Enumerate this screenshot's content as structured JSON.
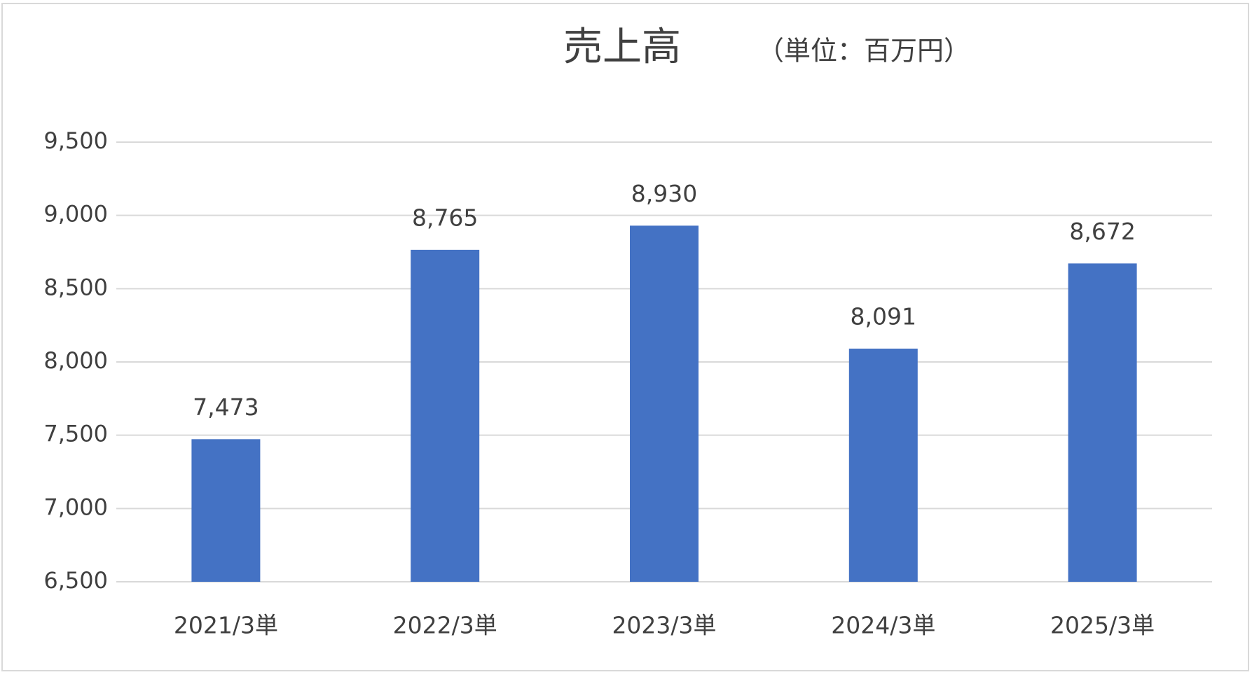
{
  "chart_data": {
    "type": "bar",
    "title": "売上高",
    "subtitle": "（単位：百万円）",
    "categories": [
      "2021/3単",
      "2022/3単",
      "2023/3単",
      "2024/3単",
      "2025/3単"
    ],
    "values": [
      7473,
      8765,
      8930,
      8091,
      8672
    ],
    "value_labels": [
      "7,473",
      "8,765",
      "8,930",
      "8,091",
      "8,672"
    ],
    "color": "#4472c4",
    "ylim": [
      6500,
      9500
    ],
    "yticks": [
      {
        "value": 6500,
        "label": "6,500"
      },
      {
        "value": 7000,
        "label": "7,000"
      },
      {
        "value": 7500,
        "label": "7,500"
      },
      {
        "value": 8000,
        "label": "8,000"
      },
      {
        "value": 8500,
        "label": "8,500"
      },
      {
        "value": 9000,
        "label": "9,000"
      },
      {
        "value": 9500,
        "label": "9,500"
      }
    ],
    "grid": true
  }
}
